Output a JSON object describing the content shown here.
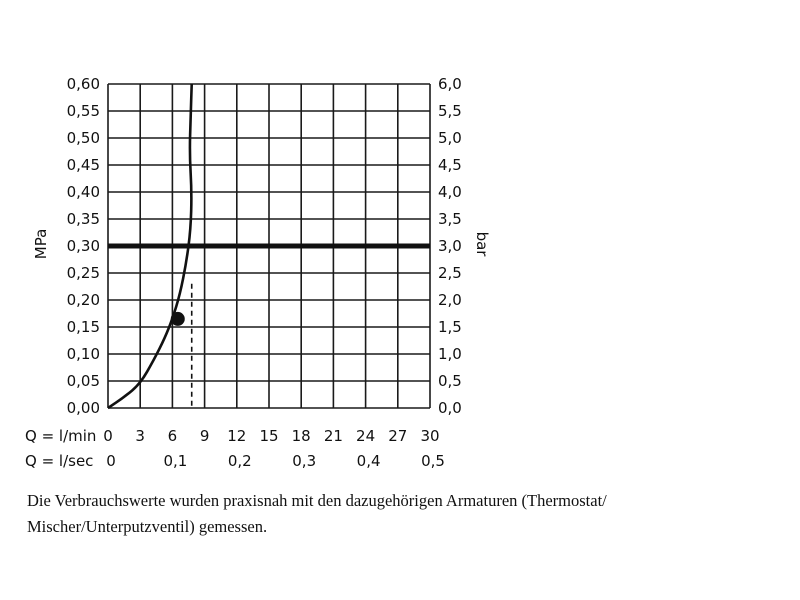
{
  "chart_data": {
    "type": "line",
    "left_axis": {
      "label": "MPa",
      "range": [
        0,
        0.6
      ],
      "ticks": [
        "0,00",
        "0,05",
        "0,10",
        "0,15",
        "0,20",
        "0,25",
        "0,30",
        "0,35",
        "0,40",
        "0,45",
        "0,50",
        "0,55",
        "0,60"
      ]
    },
    "right_axis": {
      "label": "bar",
      "range": [
        0,
        6
      ],
      "ticks": [
        "0,0",
        "0,5",
        "1,0",
        "1,5",
        "2,0",
        "2,5",
        "3,0",
        "3,5",
        "4,0",
        "4,5",
        "5,0",
        "5,5",
        "6,0"
      ]
    },
    "x_axes": [
      {
        "label": "Q = l/min",
        "range": [
          0,
          30
        ],
        "tick_values": [
          0,
          3,
          6,
          9,
          12,
          15,
          18,
          21,
          24,
          27,
          30
        ],
        "ticks": [
          "0",
          "3",
          "6",
          "9",
          "12",
          "15",
          "18",
          "21",
          "24",
          "27",
          "30"
        ]
      },
      {
        "label": "Q = l/sec",
        "range": [
          0,
          0.5
        ],
        "tick_values": [
          0,
          0.1,
          0.2,
          0.3,
          0.4,
          0.5
        ],
        "ticks": [
          "0",
          "0,1",
          "0,2",
          "0,3",
          "0,4",
          "0,5"
        ]
      }
    ],
    "grid": true,
    "reference_line": {
      "y": 0.3
    },
    "series": [
      {
        "points": [
          [
            0,
            0
          ],
          [
            1.5,
            0.02
          ],
          [
            3.0,
            0.045
          ],
          [
            4.3,
            0.09
          ],
          [
            5.3,
            0.13
          ],
          [
            6.0,
            0.165
          ],
          [
            6.7,
            0.21
          ],
          [
            7.3,
            0.27
          ],
          [
            7.7,
            0.33
          ],
          [
            7.8,
            0.4
          ],
          [
            7.6,
            0.47
          ],
          [
            7.7,
            0.54
          ],
          [
            7.8,
            0.6
          ]
        ],
        "marker": [
          6.5,
          0.165
        ],
        "dashed_drop": {
          "x": 7.8,
          "from_y": 0.23,
          "to_y": 0
        }
      }
    ]
  },
  "caption": {
    "line1": "Die Verbrauchswerte wurden praxisnah mit den dazugehörigen Armaturen (Thermostat/",
    "line2": "Mischer/Unterputzventil) gemessen."
  }
}
